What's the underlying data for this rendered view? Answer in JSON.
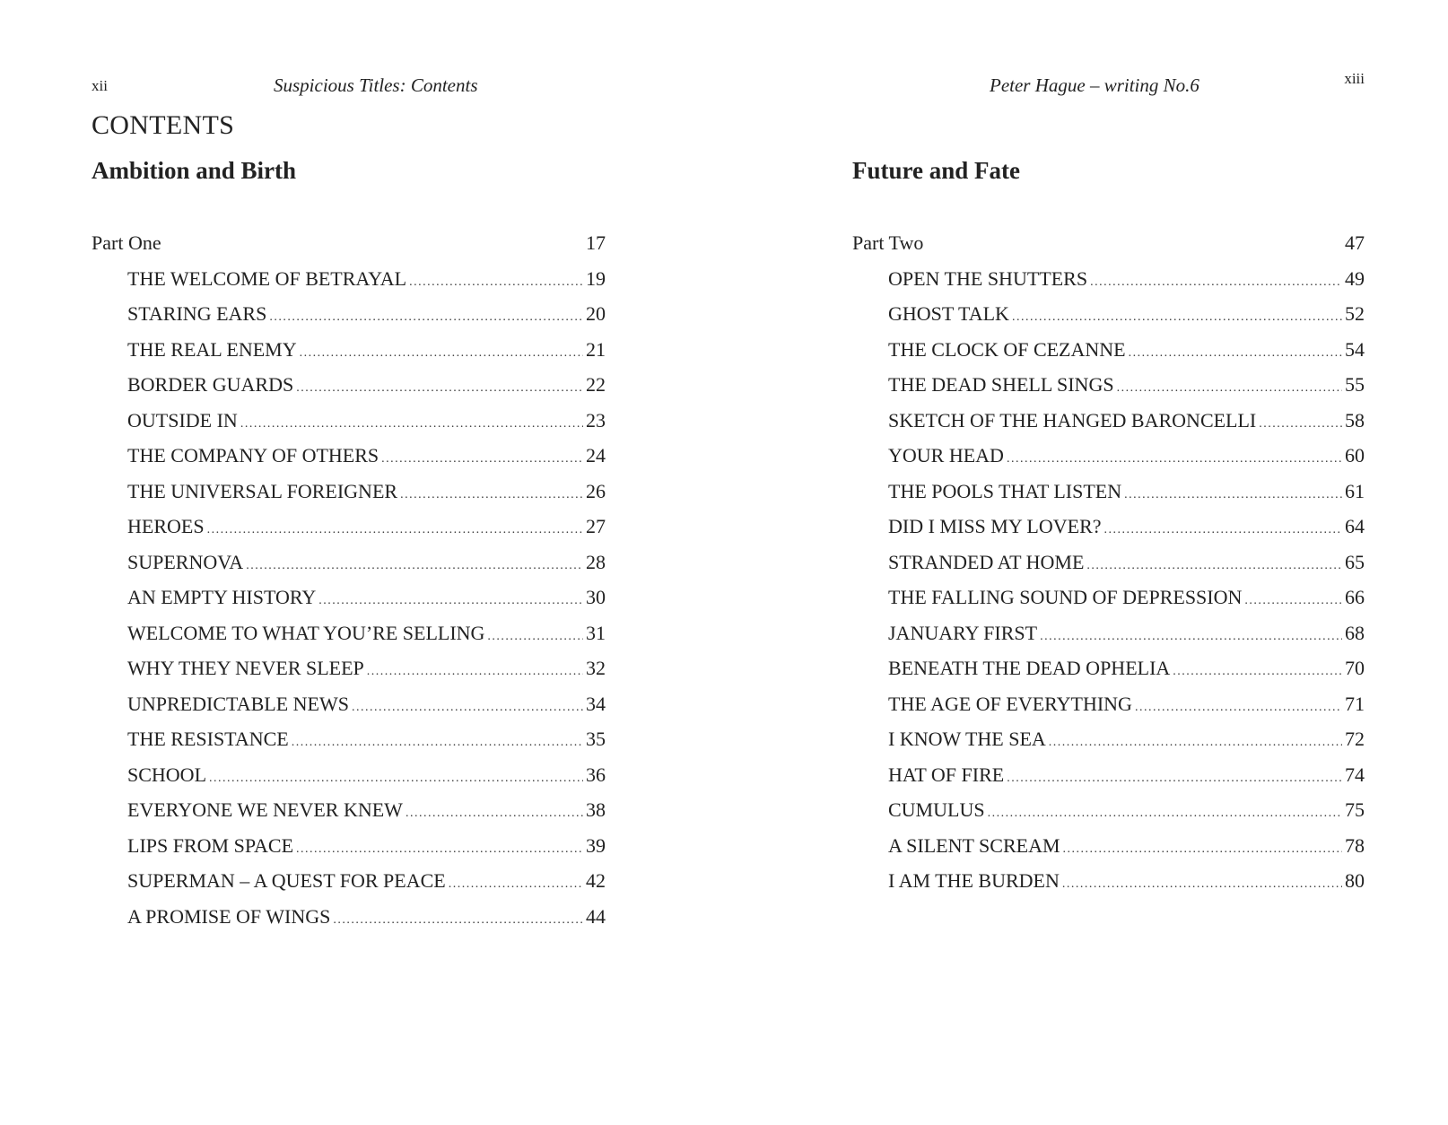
{
  "left_page": {
    "folio": "xii",
    "running_head": "Suspicious Titles: Contents",
    "contents_title": "CONTENTS",
    "section_title": "Ambition and Birth",
    "part": {
      "label": "Part One",
      "page": "17"
    },
    "entries": [
      {
        "title": "THE WELCOME OF BETRAYAL",
        "page": "19"
      },
      {
        "title": "STARING EARS",
        "page": "20"
      },
      {
        "title": "THE REAL ENEMY",
        "page": "21"
      },
      {
        "title": "BORDER GUARDS",
        "page": "22"
      },
      {
        "title": "OUTSIDE IN",
        "page": "23"
      },
      {
        "title": "THE COMPANY OF OTHERS",
        "page": "24"
      },
      {
        "title": "THE UNIVERSAL FOREIGNER",
        "page": "26"
      },
      {
        "title": "HEROES",
        "page": "27"
      },
      {
        "title": "SUPERNOVA",
        "page": "28"
      },
      {
        "title": "AN EMPTY HISTORY",
        "page": "30"
      },
      {
        "title": "WELCOME TO WHAT YOU’RE SELLING",
        "page": "31"
      },
      {
        "title": "WHY THEY NEVER SLEEP",
        "page": "32"
      },
      {
        "title": "UNPREDICTABLE NEWS",
        "page": "34"
      },
      {
        "title": "THE RESISTANCE",
        "page": "35"
      },
      {
        "title": "SCHOOL",
        "page": "36"
      },
      {
        "title": "EVERYONE WE NEVER KNEW",
        "page": "38"
      },
      {
        "title": "LIPS FROM SPACE",
        "page": "39"
      },
      {
        "title": "SUPERMAN – A QUEST FOR PEACE",
        "page": "42"
      },
      {
        "title": "A PROMISE OF WINGS",
        "page": "44"
      }
    ]
  },
  "right_page": {
    "folio": "xiii",
    "running_head": "Peter Hague – writing No.6",
    "section_title": "Future and Fate",
    "part": {
      "label": "Part Two",
      "page": "47"
    },
    "entries": [
      {
        "title": "OPEN THE SHUTTERS",
        "page": "49"
      },
      {
        "title": "GHOST TALK",
        "page": "52"
      },
      {
        "title": "THE CLOCK OF CEZANNE",
        "page": "54"
      },
      {
        "title": "THE DEAD SHELL SINGS",
        "page": "55"
      },
      {
        "title": "SKETCH OF THE HANGED BARONCELLI",
        "page": "58"
      },
      {
        "title": "YOUR HEAD",
        "page": "60"
      },
      {
        "title": "THE POOLS THAT LISTEN",
        "page": "61"
      },
      {
        "title": "DID I MISS MY LOVER?",
        "page": "64"
      },
      {
        "title": "STRANDED AT HOME",
        "page": "65"
      },
      {
        "title": "THE FALLING SOUND OF DEPRESSION",
        "page": "66"
      },
      {
        "title": "JANUARY FIRST",
        "page": "68"
      },
      {
        "title": "BENEATH THE DEAD OPHELIA",
        "page": "70"
      },
      {
        "title": "THE AGE OF EVERYTHING",
        "page": "71"
      },
      {
        "title": "I KNOW THE SEA",
        "page": "72"
      },
      {
        "title": "HAT OF FIRE",
        "page": "74"
      },
      {
        "title": "CUMULUS",
        "page": "75"
      },
      {
        "title": "A SILENT SCREAM",
        "page": "78"
      },
      {
        "title": "I AM THE BURDEN",
        "page": "80"
      }
    ]
  }
}
